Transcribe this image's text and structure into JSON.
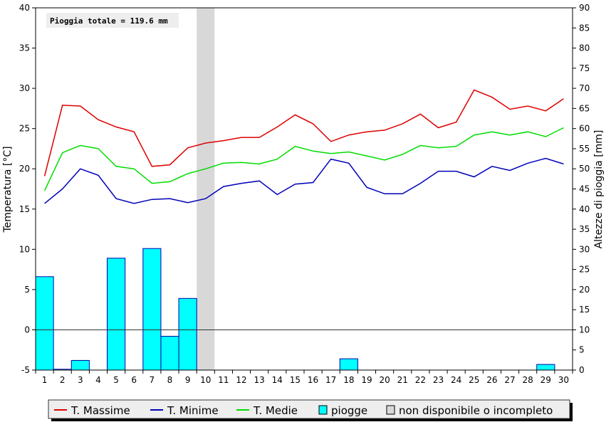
{
  "chart_data": {
    "type": "line",
    "title": "",
    "annotation": "Pioggia totale = 119.6 mm",
    "ylabel_left": "Temperatura [°C]",
    "ylabel_right": "Altezze di pioggia [mm]",
    "ylim_left": [
      -5,
      40
    ],
    "ylim_right": [
      0,
      90
    ],
    "yticks_left": [
      -5,
      0,
      5,
      10,
      15,
      20,
      25,
      30,
      35,
      40
    ],
    "yticks_right": [
      0,
      5,
      10,
      15,
      20,
      25,
      30,
      35,
      40,
      45,
      50,
      55,
      60,
      65,
      70,
      75,
      80,
      85,
      90
    ],
    "x": [
      1,
      2,
      3,
      4,
      5,
      6,
      7,
      8,
      9,
      10,
      11,
      12,
      13,
      14,
      15,
      16,
      17,
      18,
      19,
      20,
      21,
      22,
      23,
      24,
      25,
      26,
      27,
      28,
      29,
      30
    ],
    "grid": false,
    "legend_position": "bottom",
    "unavailable_days": [
      10
    ],
    "series": [
      {
        "name": "T. Massime",
        "axis": "left",
        "kind": "line",
        "color": "#dd0000",
        "values": [
          19.1,
          27.9,
          27.8,
          26.1,
          25.2,
          24.6,
          20.3,
          20.5,
          22.6,
          23.2,
          23.5,
          23.9,
          23.9,
          25.2,
          26.7,
          25.6,
          23.4,
          24.2,
          24.6,
          24.8,
          25.6,
          26.8,
          25.1,
          25.8,
          29.8,
          28.9,
          27.4,
          27.8,
          27.2,
          28.7
        ]
      },
      {
        "name": "T. Minime",
        "axis": "left",
        "kind": "line",
        "color": "#0000bb",
        "values": [
          15.7,
          17.5,
          20.0,
          19.2,
          16.3,
          15.7,
          16.2,
          16.3,
          15.8,
          16.3,
          17.8,
          18.2,
          18.5,
          16.8,
          18.1,
          18.3,
          21.2,
          20.7,
          17.7,
          16.9,
          16.9,
          18.2,
          19.7,
          19.7,
          19.0,
          20.3,
          19.8,
          20.7,
          21.3,
          20.6
        ]
      },
      {
        "name": "T. Medie",
        "axis": "left",
        "kind": "line",
        "color": "#00dd00",
        "values": [
          17.3,
          22.0,
          22.9,
          22.5,
          20.3,
          20.0,
          18.2,
          18.4,
          19.4,
          20.0,
          20.7,
          20.8,
          20.6,
          21.2,
          22.8,
          22.2,
          21.9,
          22.1,
          21.6,
          21.1,
          21.8,
          22.9,
          22.6,
          22.8,
          24.2,
          24.6,
          24.2,
          24.6,
          24.0,
          25.1
        ]
      },
      {
        "name": "piogge",
        "axis": "right",
        "kind": "bar",
        "color": "#00ffff",
        "values": [
          23.2,
          0.2,
          2.4,
          0,
          27.8,
          0,
          30.2,
          8.4,
          17.8,
          0,
          0,
          0,
          0,
          0,
          0,
          0,
          0,
          2.8,
          0,
          0,
          0,
          0,
          0,
          0,
          0,
          0,
          0,
          0,
          1.4,
          0
        ]
      }
    ],
    "legend": [
      {
        "label": "T. Massime",
        "kind": "line",
        "color": "#dd0000"
      },
      {
        "label": "T. Minime",
        "kind": "line",
        "color": "#0000bb"
      },
      {
        "label": "T. Medie",
        "kind": "line",
        "color": "#00dd00"
      },
      {
        "label": "piogge",
        "kind": "box",
        "color": "#00ffff"
      },
      {
        "label": "non disponibile o incompleto",
        "kind": "box",
        "color": "#d8d8d8"
      }
    ]
  }
}
